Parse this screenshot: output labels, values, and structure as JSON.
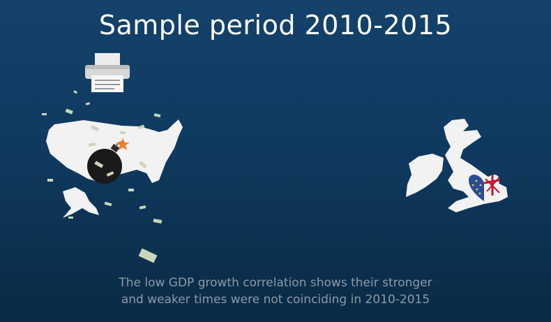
{
  "title": "Sample period 2010-2015",
  "caption": {
    "line1": "The low GDP growth correlation shows their stronger",
    "line2": "and weaker times were not coinciding in 2010-2015"
  },
  "colors": {
    "background": "#0f3a60",
    "map": "#f2f2f2",
    "caption": "#8d99a6",
    "money": "#c9d6b8",
    "bomb": "#1a1a1a",
    "spark": "#f07f2a",
    "eu_blue": "#2a4a9e",
    "eu_star": "#f3d11a",
    "uk_red": "#c8102e"
  },
  "icons": [
    "printer-icon",
    "usa-map-icon",
    "bomb-icon",
    "falling-money-icon",
    "uk-ireland-map-icon",
    "eu-uk-heart-icon"
  ]
}
